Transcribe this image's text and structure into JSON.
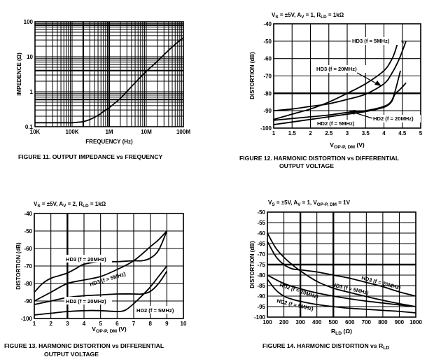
{
  "chart_data": [
    {
      "id": "fig11",
      "type": "line",
      "scale": "log-log",
      "caption": "FIGURE 11.  OUTPUT IMPEDANCE vs FREQUENCY",
      "subtitle": "",
      "xlabel": "FREQUENCY (Hz)",
      "ylabel": "IMPEDENCE (Ω)",
      "xlim": [
        10000,
        100000000
      ],
      "ylim": [
        0.1,
        100
      ],
      "xticks": [
        {
          "v": 10000,
          "label": "10K"
        },
        {
          "v": 100000,
          "label": "100K"
        },
        {
          "v": 1000000,
          "label": "1M"
        },
        {
          "v": 10000000,
          "label": "10M"
        },
        {
          "v": 100000000,
          "label": "100M"
        }
      ],
      "yticks": [
        {
          "v": 0.1,
          "label": "0.1"
        },
        {
          "v": 1,
          "label": "1"
        },
        {
          "v": 10,
          "label": "10"
        },
        {
          "v": 100,
          "label": "100"
        }
      ],
      "grid": true,
      "series": [
        {
          "name": "Output Impedance",
          "x": [
            10000,
            50000,
            100000,
            150000,
            200000,
            300000,
            500000,
            700000,
            1000000,
            2000000,
            5000000,
            10000000,
            20000000,
            50000000,
            100000000
          ],
          "y": [
            0.13,
            0.13,
            0.13,
            0.135,
            0.14,
            0.16,
            0.21,
            0.27,
            0.35,
            0.65,
            1.8,
            3.8,
            7.5,
            19,
            35
          ]
        }
      ]
    },
    {
      "id": "fig12",
      "type": "line",
      "caption": "FIGURE 12.  HARMONIC DISTORTION vs DIFFERENTIAL",
      "caption2": "OUTPUT VOLTAGE",
      "subtitle": "VS = ±5V, AV = 1, RLD = 1kΩ",
      "xlabel": "VOP-P, DM (V)",
      "ylabel": "DISTORTION (dB)",
      "xlim": [
        1,
        5
      ],
      "ylim": [
        -100,
        -40
      ],
      "xticks": [
        {
          "v": 1,
          "label": "1"
        },
        {
          "v": 1.5,
          "label": "1.5"
        },
        {
          "v": 2,
          "label": "2"
        },
        {
          "v": 2.5,
          "label": "2.5"
        },
        {
          "v": 3,
          "label": "3"
        },
        {
          "v": 3.5,
          "label": "3.5"
        },
        {
          "v": 4,
          "label": "4"
        },
        {
          "v": 4.5,
          "label": "4.5"
        },
        {
          "v": 5,
          "label": "5"
        }
      ],
      "yticks": [
        {
          "v": -40,
          "label": "-40"
        },
        {
          "v": -50,
          "label": "-50"
        },
        {
          "v": -60,
          "label": "-60"
        },
        {
          "v": -70,
          "label": "-70"
        },
        {
          "v": -80,
          "label": "-80"
        },
        {
          "v": -90,
          "label": "-90"
        },
        {
          "v": -100,
          "label": "-100"
        }
      ],
      "grid": true,
      "series": [
        {
          "name": "HD3 (f = 5MHz)",
          "x": [
            1,
            1.5,
            2,
            2.5,
            3,
            3.5,
            4,
            4.2,
            4.3,
            4.4
          ],
          "y": [
            -95,
            -92,
            -89,
            -85,
            -80,
            -74.5,
            -67,
            -61,
            -56,
            -49
          ]
        },
        {
          "name": "HD3 (f = 20MHz)",
          "x": [
            1,
            1.5,
            2,
            2.5,
            3,
            3.5,
            4,
            4.2,
            4.4,
            4.6
          ],
          "y": [
            -90,
            -89,
            -87.5,
            -86,
            -83.5,
            -80.5,
            -74.5,
            -69,
            -61,
            -50
          ]
        },
        {
          "name": "HD2 (f = 20MHz)",
          "x": [
            1,
            1.5,
            2,
            2.5,
            3,
            3.5,
            4,
            4.2,
            4.3,
            4.45
          ],
          "y": [
            -95.5,
            -94.5,
            -93.5,
            -92.5,
            -91,
            -90,
            -87.5,
            -84.5,
            -79,
            -67
          ]
        },
        {
          "name": "HD2 (f = 5MHz)",
          "x": [
            1,
            1.5,
            2,
            2.5,
            3,
            3.5,
            4,
            4.2,
            4.3,
            4.45,
            4.6
          ],
          "y": [
            -98,
            -96.5,
            -95,
            -93.5,
            -92,
            -90.5,
            -88,
            -85,
            -80.5,
            -77.5,
            -74
          ]
        }
      ],
      "labels": [
        {
          "series": "HD3 (f = 5MHz)",
          "text": "HD3 (f = 5MHz)"
        },
        {
          "series": "HD3 (f = 20MHz)",
          "text": "HD3 (f = 20MHz)"
        },
        {
          "series": "HD2 (f = 20MHz)",
          "text": "HD2 (f = 20MHz)"
        },
        {
          "series": "HD2 (f = 5MHz)",
          "text": "HD2 (f = 5MHz)"
        }
      ]
    },
    {
      "id": "fig13",
      "type": "line",
      "caption": "FIGURE 13.  HARMONIC DISTORTION vs DIFFERENTIAL",
      "caption2": "OUTPUT VOLTAGE",
      "subtitle": "VS = ±5V, AV = 2, RLD = 1kΩ",
      "xlabel": "VOP-P, DM (V)",
      "ylabel": "DISTORTION (dB)",
      "xlim": [
        1,
        10
      ],
      "ylim": [
        -100,
        -40
      ],
      "xticks": [
        {
          "v": 1,
          "label": "1"
        },
        {
          "v": 2,
          "label": "2"
        },
        {
          "v": 3,
          "label": "3"
        },
        {
          "v": 4,
          "label": "4"
        },
        {
          "v": 5,
          "label": "5"
        },
        {
          "v": 6,
          "label": "6"
        },
        {
          "v": 7,
          "label": "7"
        },
        {
          "v": 8,
          "label": "8"
        },
        {
          "v": 9,
          "label": "9"
        },
        {
          "v": 10,
          "label": "10"
        }
      ],
      "yticks": [
        {
          "v": -40,
          "label": "-40"
        },
        {
          "v": -50,
          "label": "-50"
        },
        {
          "v": -60,
          "label": "-60"
        },
        {
          "v": -70,
          "label": "-70"
        },
        {
          "v": -80,
          "label": "-80"
        },
        {
          "v": -90,
          "label": "-90"
        },
        {
          "v": -100,
          "label": "-100"
        }
      ],
      "grid": true,
      "series": [
        {
          "name": "HD3 (f = 20MHz)",
          "x": [
            1,
            1.5,
            2,
            2.5,
            3,
            3.5,
            4,
            5,
            6,
            7,
            7.5,
            8,
            8.5,
            9
          ],
          "y": [
            -85,
            -80,
            -77,
            -75.5,
            -74,
            -71.5,
            -69,
            -67.5,
            -67.5,
            -67,
            -67,
            -65.5,
            -61,
            -50
          ]
        },
        {
          "name": "HD3 (f = 5MHz)",
          "x": [
            1,
            2,
            3,
            4,
            5,
            6,
            7,
            8,
            8.5,
            9
          ],
          "y": [
            -90,
            -85,
            -80,
            -78,
            -76,
            -72,
            -67,
            -59,
            -55,
            -50
          ]
        },
        {
          "name": "HD2 (f = 20MHz)",
          "x": [
            1,
            2,
            3,
            4,
            5,
            6,
            7,
            7.5,
            8,
            8.5,
            9
          ],
          "y": [
            -92,
            -90,
            -88,
            -87,
            -86.5,
            -86,
            -86,
            -86,
            -84.5,
            -80,
            -73
          ]
        },
        {
          "name": "HD2 (f = 5MHz)",
          "x": [
            1,
            2,
            3,
            4,
            5,
            6,
            6.5,
            7,
            7.5,
            8,
            8.5,
            9
          ],
          "y": [
            -98,
            -97,
            -96,
            -95.5,
            -95.5,
            -96,
            -95.2,
            -91.5,
            -87,
            -82,
            -76,
            -70
          ]
        }
      ],
      "labels": [
        {
          "series": "HD3 (f = 20MHz)",
          "text": "HD3 (f = 20MHz)"
        },
        {
          "series": "HD3 (f = 5MHz)",
          "text": "HD3 (f = 5MHz)"
        },
        {
          "series": "HD2 (f = 20MHz)",
          "text": "HD2 (f = 20MHz)"
        },
        {
          "series": "HD2 (f = 5MHz)",
          "text": "HD2 (f = 5MHz)"
        }
      ]
    },
    {
      "id": "fig14",
      "type": "line",
      "caption": "FIGURE 14.  HARMONIC DISTORTION vs RLD",
      "subtitle": "VS = ±5V, AV = 1, VOP-P, DM = 1V",
      "xlabel": "RLD (Ω)",
      "ylabel": "DISTORTION (dB)",
      "xlim": [
        100,
        1000
      ],
      "ylim": [
        -100,
        -50
      ],
      "xticks": [
        {
          "v": 100,
          "label": "100"
        },
        {
          "v": 200,
          "label": "200"
        },
        {
          "v": 300,
          "label": "300"
        },
        {
          "v": 400,
          "label": "400"
        },
        {
          "v": 500,
          "label": "500"
        },
        {
          "v": 600,
          "label": "600"
        },
        {
          "v": 700,
          "label": "700"
        },
        {
          "v": 800,
          "label": "800"
        },
        {
          "v": 900,
          "label": "900"
        },
        {
          "v": 1000,
          "label": "1000"
        }
      ],
      "yticks": [
        {
          "v": -50,
          "label": "-50"
        },
        {
          "v": -55,
          "label": "-55"
        },
        {
          "v": -60,
          "label": "-60"
        },
        {
          "v": -65,
          "label": "-65"
        },
        {
          "v": -70,
          "label": "-70"
        },
        {
          "v": -75,
          "label": "-75"
        },
        {
          "v": -80,
          "label": "-80"
        },
        {
          "v": -85,
          "label": "-85"
        },
        {
          "v": -90,
          "label": "-90"
        },
        {
          "v": -95,
          "label": "-95"
        },
        {
          "v": -100,
          "label": "-100"
        }
      ],
      "grid": true,
      "series": [
        {
          "name": "HD3 (f = 20MHz)",
          "x": [
            100,
            150,
            200,
            250,
            300,
            400,
            500,
            600,
            700,
            800,
            900,
            1000
          ],
          "y": [
            -64,
            -71,
            -75,
            -77,
            -77.5,
            -78.5,
            -80,
            -81.5,
            -83.5,
            -85.5,
            -88,
            -90
          ]
        },
        {
          "name": "HD3 (f = 5MHz)",
          "x": [
            100,
            150,
            200,
            250,
            300,
            400,
            500,
            600,
            700,
            800,
            900,
            1000
          ],
          "y": [
            -60,
            -67,
            -71.5,
            -75,
            -78,
            -83,
            -86.2,
            -88.3,
            -90.2,
            -92,
            -93.6,
            -95
          ]
        },
        {
          "name": "HD2 (f = 20MHz)",
          "x": [
            100,
            200,
            300,
            400,
            500,
            600,
            700,
            800,
            900,
            1000
          ],
          "y": [
            -80,
            -84,
            -86.5,
            -88.5,
            -90,
            -91.3,
            -92.4,
            -93.3,
            -94.2,
            -95
          ]
        },
        {
          "name": "HD2 (f = 5MHz)",
          "x": [
            100,
            150,
            200,
            250,
            300,
            400,
            500,
            600,
            700,
            800,
            900,
            1000
          ],
          "y": [
            -82,
            -87,
            -90,
            -91.5,
            -92.5,
            -94,
            -95,
            -95.8,
            -96.3,
            -96.8,
            -97.3,
            -98
          ]
        }
      ],
      "labels": [
        {
          "series": "HD3 (f = 20MHz)",
          "text": "HD3 (f = 20MHz)"
        },
        {
          "series": "HD3 (f = 5MHz)",
          "text": "HD3 (f = 5MHz)"
        },
        {
          "series": "HD2 (f = 20MHz)",
          "text": "HD2 (f = 20MHz)"
        },
        {
          "series": "HD2 (f = 5MHz)",
          "text": "HD2 (f = 5MHz)"
        }
      ]
    }
  ]
}
